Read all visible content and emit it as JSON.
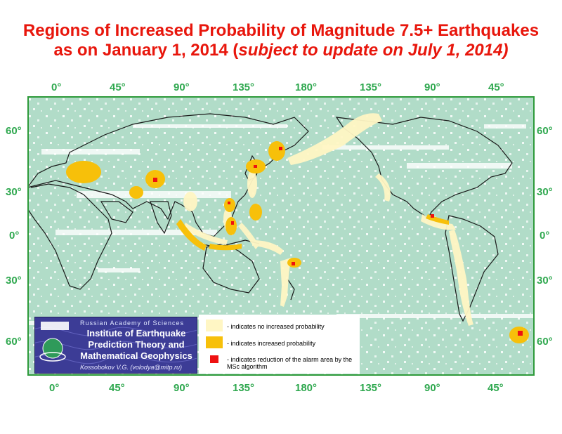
{
  "title": {
    "line1": "Regions of Increased Probability of Magnitude 7.5+ Earthquakes",
    "line2_prefix": "as on January 1, 2014 (",
    "line2_italic": "subject to update on July 1, 2014)"
  },
  "axes": {
    "longitude_labels": [
      "0°",
      "45°",
      "90°",
      "135°",
      "180°",
      "135°",
      "90°",
      "45°"
    ],
    "latitude_labels": [
      "60°",
      "30°",
      "0°",
      "30°",
      "60°"
    ]
  },
  "legend": {
    "items": [
      {
        "text": "- indicates no increased probability",
        "color": "#fff6c4"
      },
      {
        "text": "- indicates increased probability",
        "color": "#f7c00a"
      },
      {
        "text": "- indicates reduction of the alarm area by the MSc algorithm",
        "color": "#ee1111"
      }
    ]
  },
  "logo": {
    "academy": "Russian Academy of Sciences",
    "institute_line1": "Institute of Earthquake",
    "institute_line2": "Prediction Theory and",
    "institute_line3": "Mathematical Geophysics",
    "author": "Kossobokov V.G. (volodya@mitp.ru)"
  },
  "colors": {
    "ocean": "#b1dcc8",
    "frame": "#2e9a3a",
    "title": "#e8160c",
    "tick": "#2fa84f",
    "coast": "#1a1a1a",
    "no_increase": "#fff6c4",
    "increased": "#f7c00a",
    "reduced": "#ee1111"
  }
}
